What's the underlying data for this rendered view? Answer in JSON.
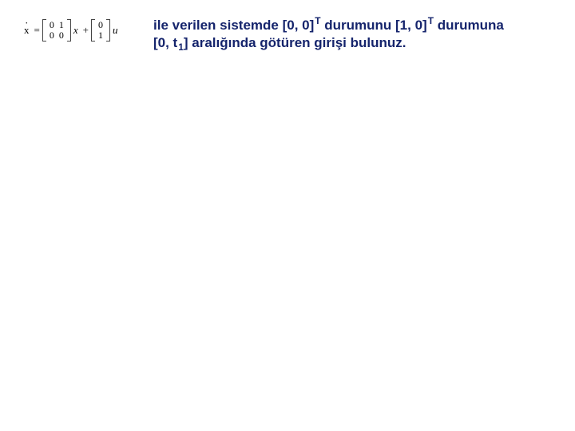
{
  "equation": {
    "lhs_symbol": "x",
    "A": [
      [
        "0",
        "1"
      ],
      [
        "0",
        "0"
      ]
    ],
    "B": [
      [
        "0"
      ],
      [
        "1"
      ]
    ],
    "state_var": "x",
    "plus": "+",
    "eq": "=",
    "input_var": "u"
  },
  "text": {
    "line1_part1": "ile verilen sistemde [0, 0]",
    "line1_sup1": "T",
    "line1_part2": " durumunu [1, 0]",
    "line1_sup2": "T",
    "line1_part3": " durumuna",
    "line2_part1": "[0, t",
    "line2_sub": "1",
    "line2_part2": "] aralığında götüren girişi bulunuz."
  },
  "colors": {
    "text": "#15246c",
    "math": "#000000",
    "background": "#ffffff"
  },
  "fonts": {
    "body_family": "Comic Sans MS",
    "body_size_pt": 13,
    "math_family": "Times New Roman",
    "math_size_pt": 10
  }
}
